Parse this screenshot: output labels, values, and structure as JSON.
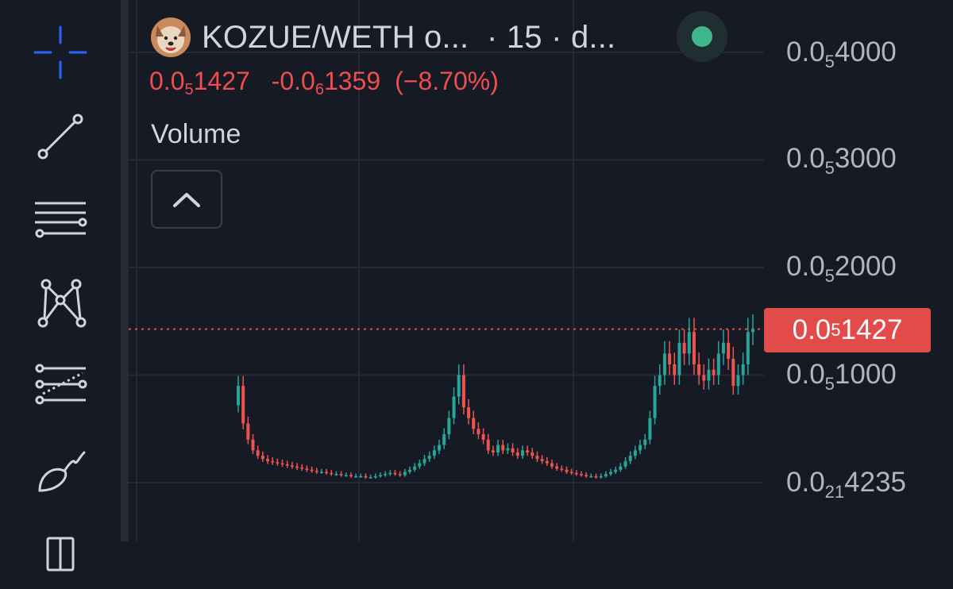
{
  "header": {
    "pair_title": "KOZUE/WETH o...",
    "interval_sep1": "·",
    "interval": "15",
    "interval_sep2": "·",
    "exchange": "d...",
    "status": "online"
  },
  "legend": {
    "price_prefix": "0.0",
    "price_sub": "5",
    "price_rest": "1427",
    "change_prefix": "-0.0",
    "change_sub": "6",
    "change_rest": "1359",
    "change_pct": "(−8.70%)",
    "volume_label": "Volume"
  },
  "price_axis": {
    "labels": [
      {
        "prefix": "0.0",
        "sub": "5",
        "rest": "4000"
      },
      {
        "prefix": "0.0",
        "sub": "5",
        "rest": "3000"
      },
      {
        "prefix": "0.0",
        "sub": "5",
        "rest": "2000"
      },
      {
        "prefix": "0.0",
        "sub": "5",
        "rest": "1000"
      },
      {
        "prefix": "0.0",
        "sub": "21",
        "rest": "4235"
      }
    ],
    "last_price": {
      "prefix": "0.0",
      "sub": "5",
      "rest": "1427"
    }
  },
  "colors": {
    "background": "#161a25",
    "up": "#26a69a",
    "down": "#ef5350",
    "last_price_tag": "#e34a4a",
    "text": "#d1d4dc",
    "axis_text": "#b2b5be",
    "status": "#3fb68b"
  },
  "toolbar": {
    "tools": [
      "crosshair-icon",
      "trend-line-icon",
      "horizontal-lines-icon",
      "pattern-icon",
      "fib-icon",
      "brush-icon",
      "ruler-icon"
    ]
  },
  "chart_data": {
    "type": "candlestick",
    "y_unit": "price in WETH (×1e-6)",
    "ylim": [
      0.0,
      4.0
    ],
    "last_price": 1.427,
    "close": [
      0.9,
      0.55,
      0.4,
      0.3,
      0.25,
      0.22,
      0.2,
      0.19,
      0.18,
      0.17,
      0.16,
      0.15,
      0.14,
      0.13,
      0.12,
      0.11,
      0.1,
      0.1,
      0.09,
      0.08,
      0.08,
      0.07,
      0.07,
      0.06,
      0.06,
      0.06,
      0.05,
      0.05,
      0.06,
      0.07,
      0.08,
      0.09,
      0.08,
      0.07,
      0.1,
      0.12,
      0.15,
      0.18,
      0.22,
      0.25,
      0.3,
      0.35,
      0.45,
      0.6,
      0.8,
      1.0,
      0.7,
      0.6,
      0.5,
      0.45,
      0.4,
      0.3,
      0.28,
      0.35,
      0.3,
      0.32,
      0.28,
      0.25,
      0.3,
      0.28,
      0.25,
      0.22,
      0.2,
      0.18,
      0.15,
      0.13,
      0.12,
      0.1,
      0.09,
      0.08,
      0.07,
      0.06,
      0.06,
      0.05,
      0.06,
      0.08,
      0.1,
      0.12,
      0.15,
      0.2,
      0.25,
      0.3,
      0.35,
      0.4,
      0.6,
      0.9,
      1.0,
      1.2,
      1.1,
      1.0,
      1.3,
      1.2,
      1.4,
      1.1,
      1.0,
      0.95,
      1.05,
      1.0,
      1.2,
      1.3,
      1.15,
      0.9,
      1.0,
      1.1,
      1.4,
      1.43
    ]
  }
}
